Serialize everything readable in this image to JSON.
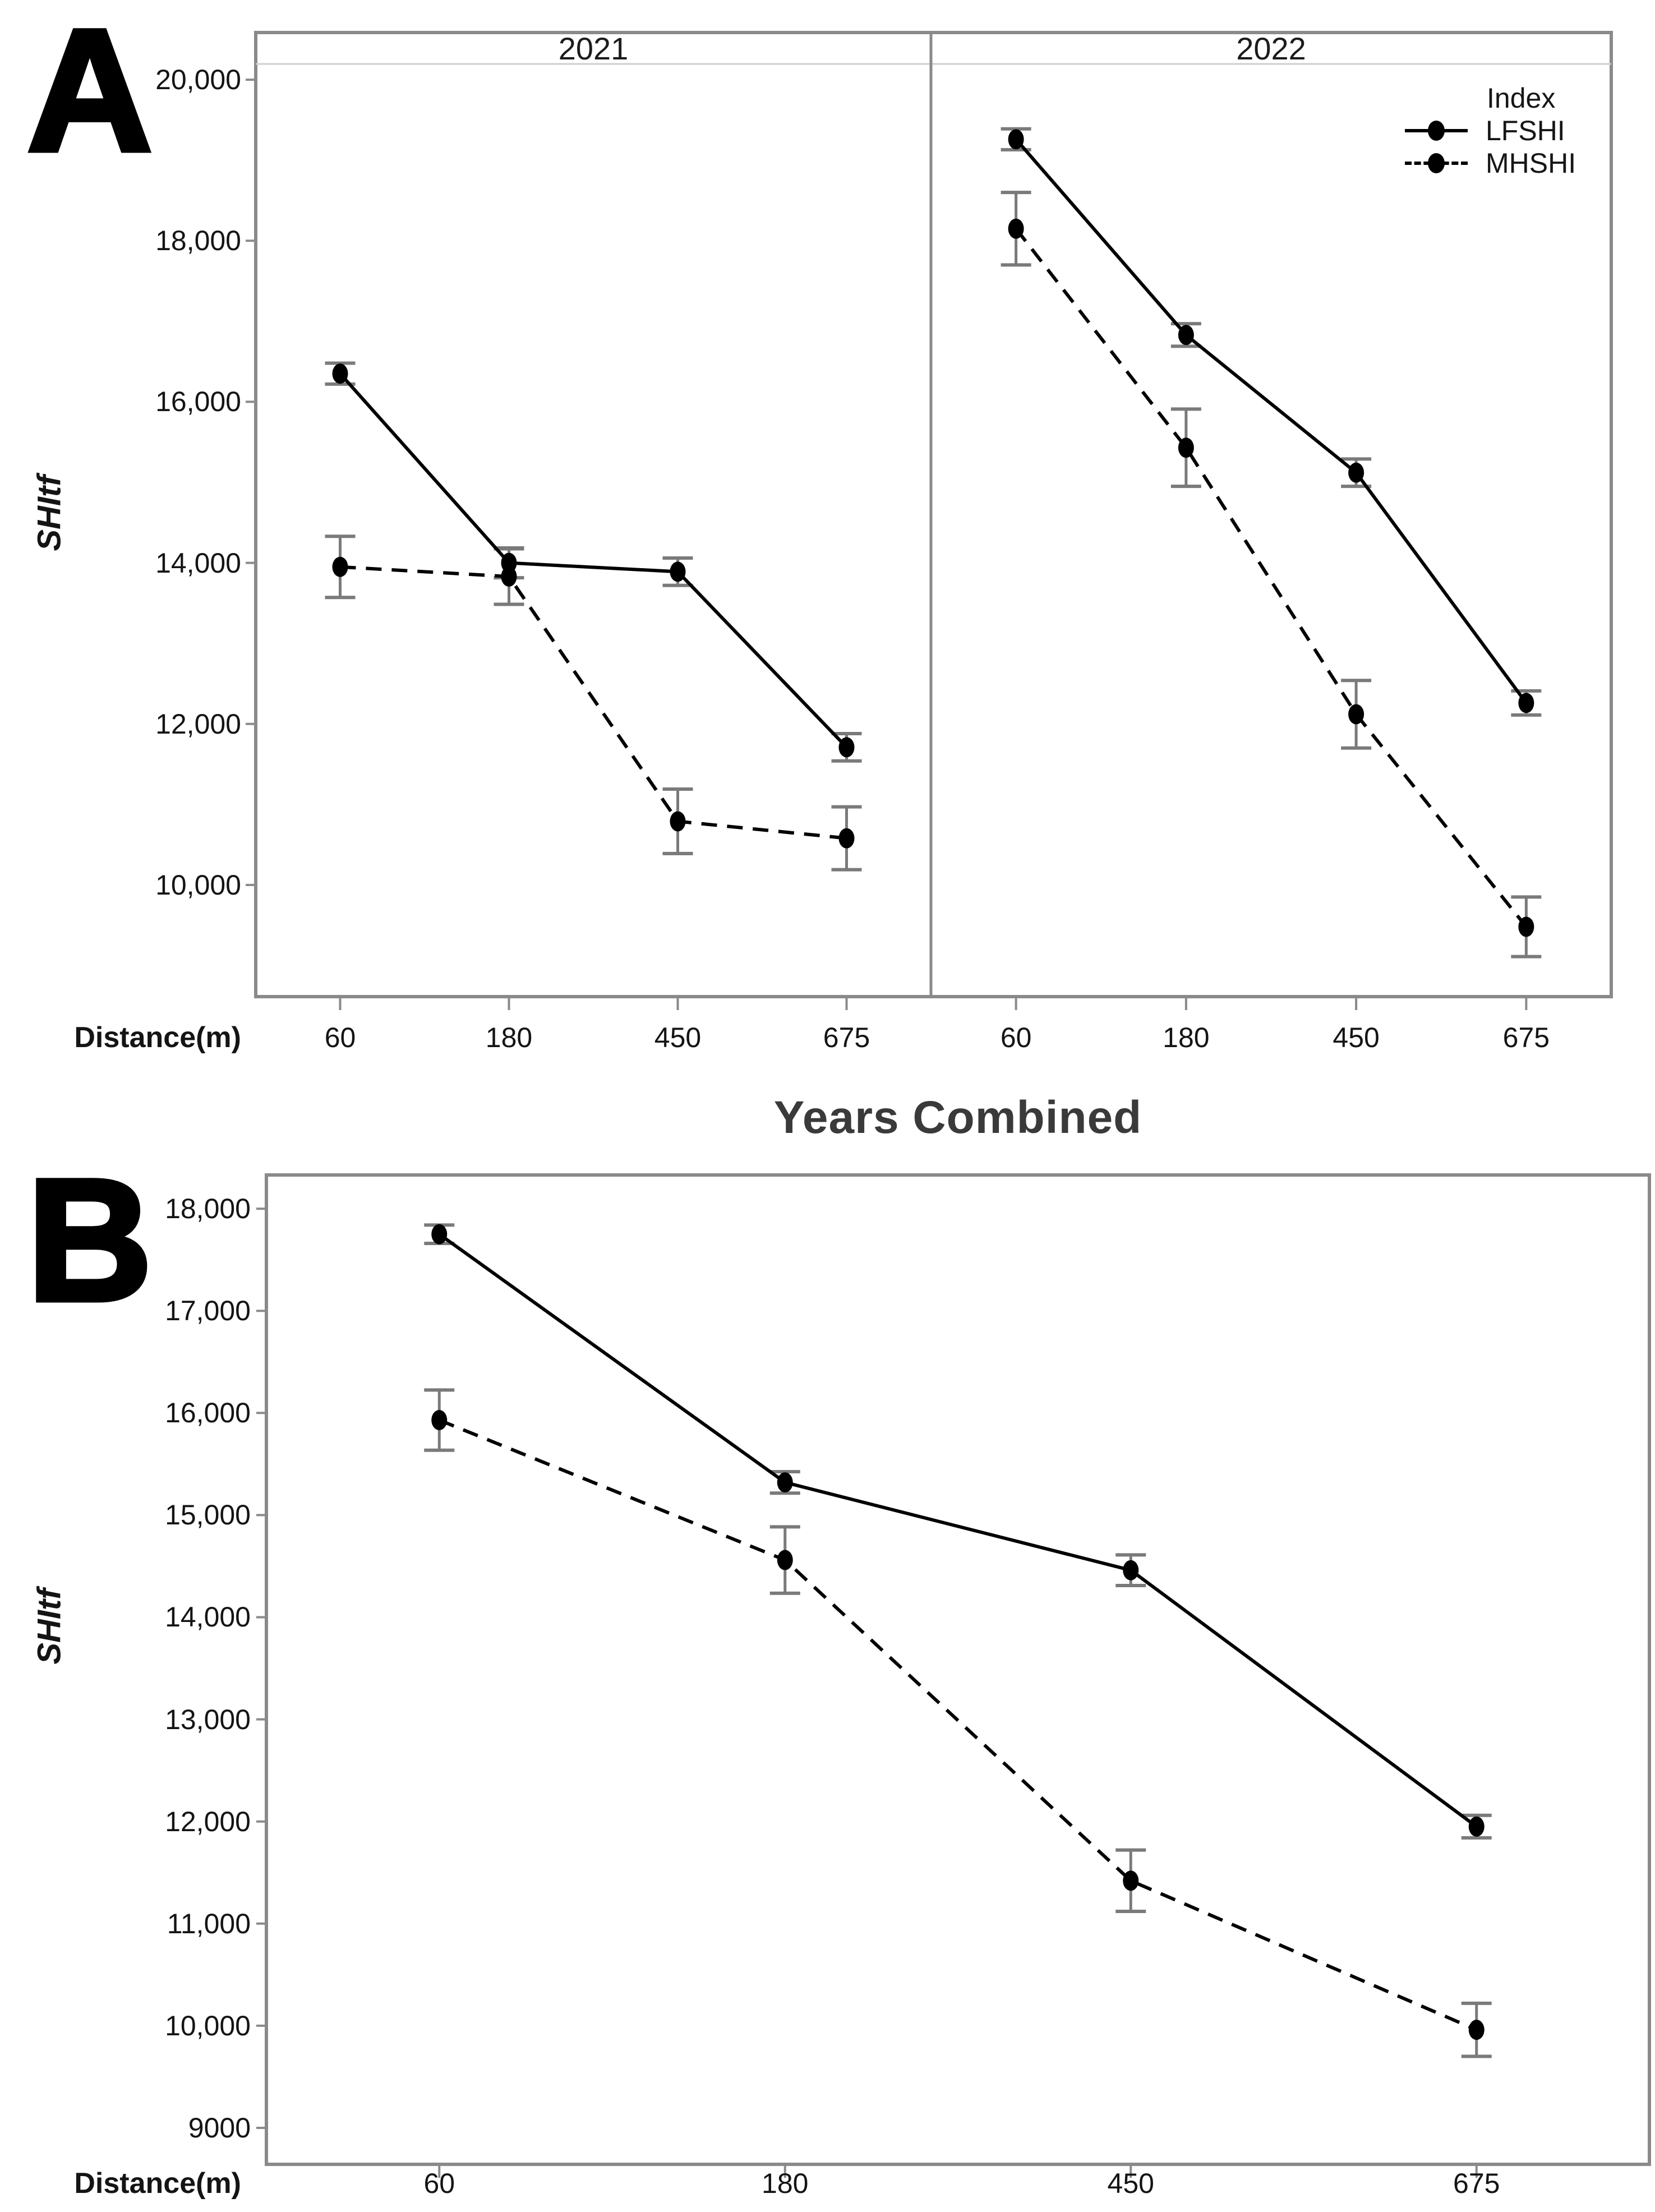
{
  "figure": {
    "panel_a_label": "A",
    "panel_b_label": "B",
    "legend": {
      "title": "Index",
      "items": [
        {
          "label": "LFSHI",
          "style": "solid"
        },
        {
          "label": "MHSHI",
          "style": "dashed"
        }
      ]
    },
    "colors": {
      "line": "#000000",
      "error_bar": "#7a7a7a",
      "border": "#8a8a8a",
      "strip_line": "#cfcfcf",
      "title_text": "#3a3a3a",
      "background": "#ffffff"
    }
  },
  "chart_data": [
    {
      "id": "A",
      "type": "line",
      "ylabel": "SHItf",
      "xlabel": "Distance(m)",
      "x": [
        60,
        180,
        450,
        675
      ],
      "x_labels": [
        "60",
        "180",
        "450",
        "675"
      ],
      "ylim": [
        8613,
        20196
      ],
      "grid": "off",
      "legend_position": "top-right-of-2022-facet",
      "yticks": [
        {
          "v": 20000,
          "label": "20,000"
        },
        {
          "v": 18000,
          "label": "18,000"
        },
        {
          "v": 16000,
          "label": "16,000"
        },
        {
          "v": 14000,
          "label": "14,000"
        },
        {
          "v": 12000,
          "label": "12,000"
        },
        {
          "v": 10000,
          "label": "10,000"
        }
      ],
      "facets": [
        {
          "label": "2021",
          "series": [
            {
              "name": "LFSHI",
              "style": "solid",
              "values": [
                16350,
                14000,
                13890,
                11710
              ],
              "errors": [
                130,
                185,
                170,
                170
              ]
            },
            {
              "name": "MHSHI",
              "style": "dashed",
              "values": [
                13950,
                13830,
                10790,
                10580
              ],
              "errors": [
                380,
                345,
                400,
                390
              ]
            }
          ]
        },
        {
          "label": "2022",
          "series": [
            {
              "name": "LFSHI",
              "style": "solid",
              "values": [
                19260,
                16830,
                15120,
                12260
              ],
              "errors": [
                130,
                140,
                170,
                150
              ]
            },
            {
              "name": "MHSHI",
              "style": "dashed",
              "values": [
                18150,
                15430,
                12120,
                9480
              ],
              "errors": [
                450,
                480,
                420,
                370
              ]
            }
          ]
        }
      ]
    },
    {
      "id": "B",
      "type": "line",
      "title": "Years Combined",
      "ylabel": "SHItf",
      "xlabel": "Distance(m)",
      "x": [
        60,
        180,
        450,
        675
      ],
      "x_labels": [
        "60",
        "180",
        "450",
        "675"
      ],
      "ylim": [
        8643,
        18330
      ],
      "grid": "off",
      "yticks": [
        {
          "v": 18000,
          "label": "18,000"
        },
        {
          "v": 17000,
          "label": "17,000"
        },
        {
          "v": 16000,
          "label": "16,000"
        },
        {
          "v": 15000,
          "label": "15,000"
        },
        {
          "v": 14000,
          "label": "14,000"
        },
        {
          "v": 13000,
          "label": "13,000"
        },
        {
          "v": 12000,
          "label": "12,000"
        },
        {
          "v": 11000,
          "label": "11,000"
        },
        {
          "v": 10000,
          "label": "10,000"
        },
        {
          "v": 9000,
          "label": "9000"
        }
      ],
      "series": [
        {
          "name": "LFSHI",
          "style": "solid",
          "values": [
            17750,
            15320,
            14460,
            11950
          ],
          "errors": [
            90,
            105,
            150,
            110
          ]
        },
        {
          "name": "MHSHI",
          "style": "dashed",
          "values": [
            15930,
            14560,
            11420,
            9960
          ],
          "errors": [
            295,
            325,
            300,
            260
          ]
        }
      ]
    }
  ]
}
